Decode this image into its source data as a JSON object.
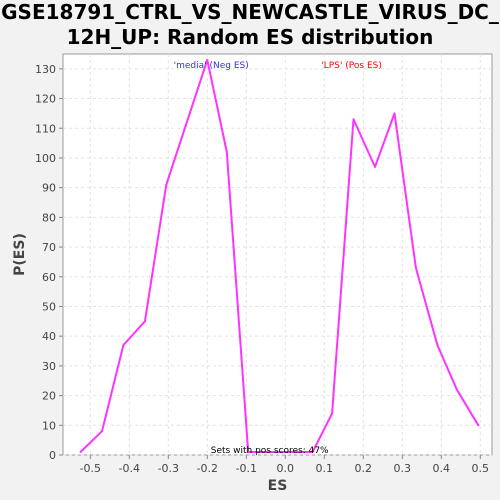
{
  "chart_data": {
    "type": "line",
    "title_lines": [
      "GSE18791_CTRL_VS_NEWCASTLE_VIRUS_DC_",
      "12H_UP: Random ES distribution"
    ],
    "xlabel": "ES",
    "ylabel": "P(ES)",
    "xlim": [
      -0.57,
      0.53
    ],
    "ylim": [
      0,
      135
    ],
    "x_ticks": [
      -0.5,
      -0.4,
      -0.3,
      -0.2,
      -0.1,
      0.0,
      0.1,
      0.2,
      0.3,
      0.4,
      0.5
    ],
    "x_tick_labels": [
      "-0.5",
      "-0.4",
      "-0.3",
      "-0.2",
      "-0.1",
      "0.0",
      "0.1",
      "0.2",
      "0.3",
      "0.4",
      "0.5"
    ],
    "y_ticks": [
      0,
      10,
      20,
      30,
      40,
      50,
      60,
      70,
      80,
      90,
      100,
      110,
      120,
      130
    ],
    "y_tick_labels": [
      "0",
      "10",
      "20",
      "30",
      "40",
      "50",
      "60",
      "70",
      "80",
      "90",
      "100",
      "110",
      "120",
      "130"
    ],
    "grid": true,
    "series": [
      {
        "color": "#ff33ff",
        "x": [
          -0.525,
          -0.47,
          -0.415,
          -0.36,
          -0.305,
          -0.255,
          -0.2,
          -0.15,
          -0.095,
          -0.04,
          0.015,
          0.07,
          0.12,
          0.175,
          0.23,
          0.28,
          0.335,
          0.39,
          0.44,
          0.495
        ],
        "y": [
          1,
          8,
          37,
          45,
          91,
          111,
          133,
          102,
          1,
          1,
          1,
          1,
          14,
          113,
          97,
          115,
          63,
          37,
          22,
          10
        ]
      }
    ],
    "annotations": [
      {
        "text": "'media' (Neg ES)",
        "color": "#3333cc",
        "x": -0.19
      },
      {
        "text": "'LPS' (Pos ES)",
        "color": "#ff0000",
        "x": 0.17
      },
      {
        "text": "Sets with pos scores: 47%",
        "color": "#000000",
        "x": -0.04
      }
    ]
  }
}
